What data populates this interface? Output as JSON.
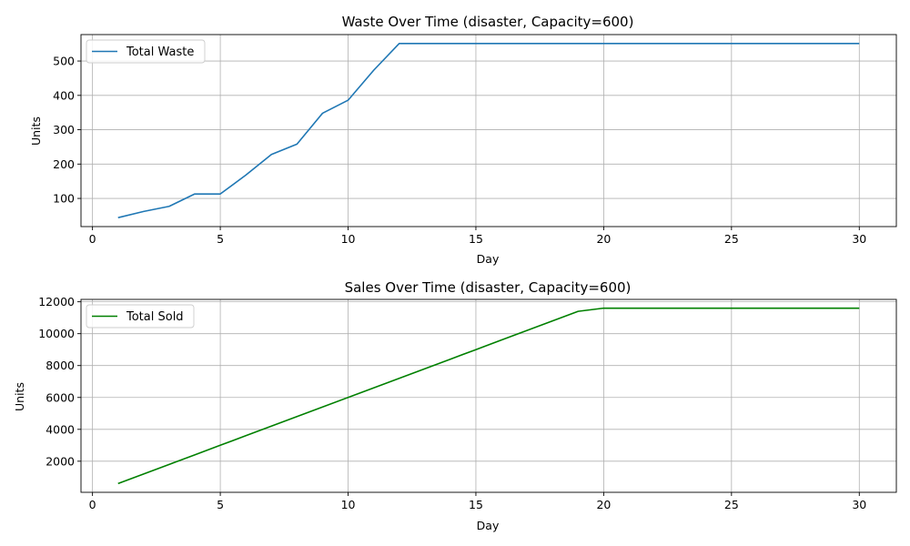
{
  "chart_data": [
    {
      "type": "line",
      "title": "Waste Over Time (disaster, Capacity=600)",
      "xlabel": "Day",
      "ylabel": "Units",
      "xlim": [
        -0.45,
        31.45
      ],
      "ylim": [
        18,
        577
      ],
      "xticks": [
        0,
        5,
        10,
        15,
        20,
        25,
        30
      ],
      "yticks": [
        100,
        200,
        300,
        400,
        500
      ],
      "grid": true,
      "legend_position": "upper left",
      "series": [
        {
          "name": "Total Waste",
          "color": "#1f77b4",
          "x": [
            1,
            2,
            3,
            4,
            5,
            6,
            7,
            8,
            9,
            10,
            11,
            12,
            13,
            14,
            15,
            16,
            17,
            18,
            19,
            20,
            21,
            22,
            23,
            24,
            25,
            26,
            27,
            28,
            29,
            30
          ],
          "y": [
            44,
            62,
            77,
            113,
            113,
            168,
            228,
            258,
            348,
            386,
            473,
            551,
            551,
            551,
            551,
            551,
            551,
            551,
            551,
            551,
            551,
            551,
            551,
            551,
            551,
            551,
            551,
            551,
            551,
            551
          ]
        }
      ]
    },
    {
      "type": "line",
      "title": "Sales Over Time (disaster, Capacity=600)",
      "xlabel": "Day",
      "ylabel": "Units",
      "xlim": [
        -0.45,
        31.45
      ],
      "ylim": [
        50,
        12150
      ],
      "xticks": [
        0,
        5,
        10,
        15,
        20,
        25,
        30
      ],
      "yticks": [
        2000,
        4000,
        6000,
        8000,
        10000,
        12000
      ],
      "grid": true,
      "legend_position": "upper left",
      "series": [
        {
          "name": "Total Sold",
          "color": "#008000",
          "x": [
            1,
            2,
            3,
            4,
            5,
            6,
            7,
            8,
            9,
            10,
            11,
            12,
            13,
            14,
            15,
            16,
            17,
            18,
            19,
            20,
            21,
            22,
            23,
            24,
            25,
            26,
            27,
            28,
            29,
            30
          ],
          "y": [
            600,
            1200,
            1800,
            2400,
            3000,
            3600,
            4200,
            4800,
            5400,
            6000,
            6600,
            7200,
            7800,
            8400,
            9000,
            9600,
            10200,
            10800,
            11400,
            11600,
            11600,
            11600,
            11600,
            11600,
            11600,
            11600,
            11600,
            11600,
            11600,
            11600
          ]
        }
      ]
    }
  ]
}
